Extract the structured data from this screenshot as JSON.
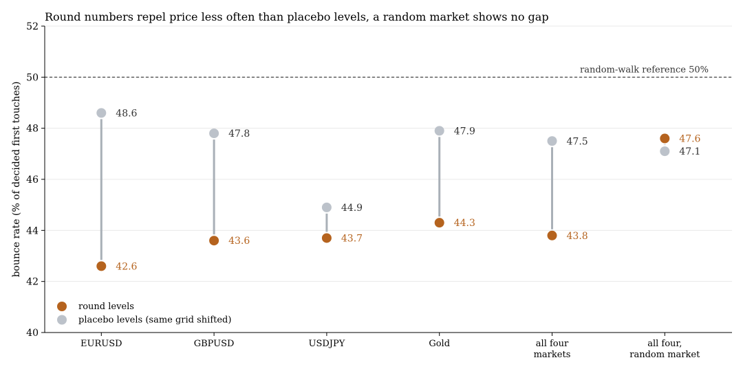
{
  "chart_data": {
    "type": "dumbbell",
    "title": "Round numbers repel price less often than placebo levels, a random market shows no gap",
    "xlabel": "",
    "ylabel": "bounce rate (% of decided first touches)",
    "ylim": [
      40,
      52
    ],
    "yticks": [
      "40",
      "42",
      "44",
      "46",
      "48",
      "50",
      "52"
    ],
    "grid": "horizontal",
    "legend_position": "bottom-left",
    "categories": [
      [
        "EURUSD"
      ],
      [
        "GBPUSD"
      ],
      [
        "USDJPY"
      ],
      [
        "Gold"
      ],
      [
        "all four",
        "markets"
      ],
      [
        "all four,",
        "random market"
      ]
    ],
    "series": [
      {
        "name": "round levels",
        "color": "#b5631e",
        "values": [
          42.6,
          43.6,
          43.7,
          44.3,
          43.8,
          47.6
        ],
        "labels": [
          "42.6",
          "43.6",
          "43.7",
          "44.3",
          "43.8",
          "47.6"
        ]
      },
      {
        "name": "placebo levels (same grid shifted)",
        "color": "#bcc2ca",
        "values": [
          48.6,
          47.8,
          44.9,
          47.9,
          47.5,
          47.1
        ],
        "labels": [
          "48.6",
          "47.8",
          "44.9",
          "47.9",
          "47.5",
          "47.1"
        ]
      }
    ],
    "reference": {
      "value": 50,
      "label": "random-walk reference 50%"
    },
    "colors": {
      "connector": "#a9b0b7",
      "text": "#333333",
      "axis": "#000000",
      "grid": "#e8e8e8"
    }
  }
}
